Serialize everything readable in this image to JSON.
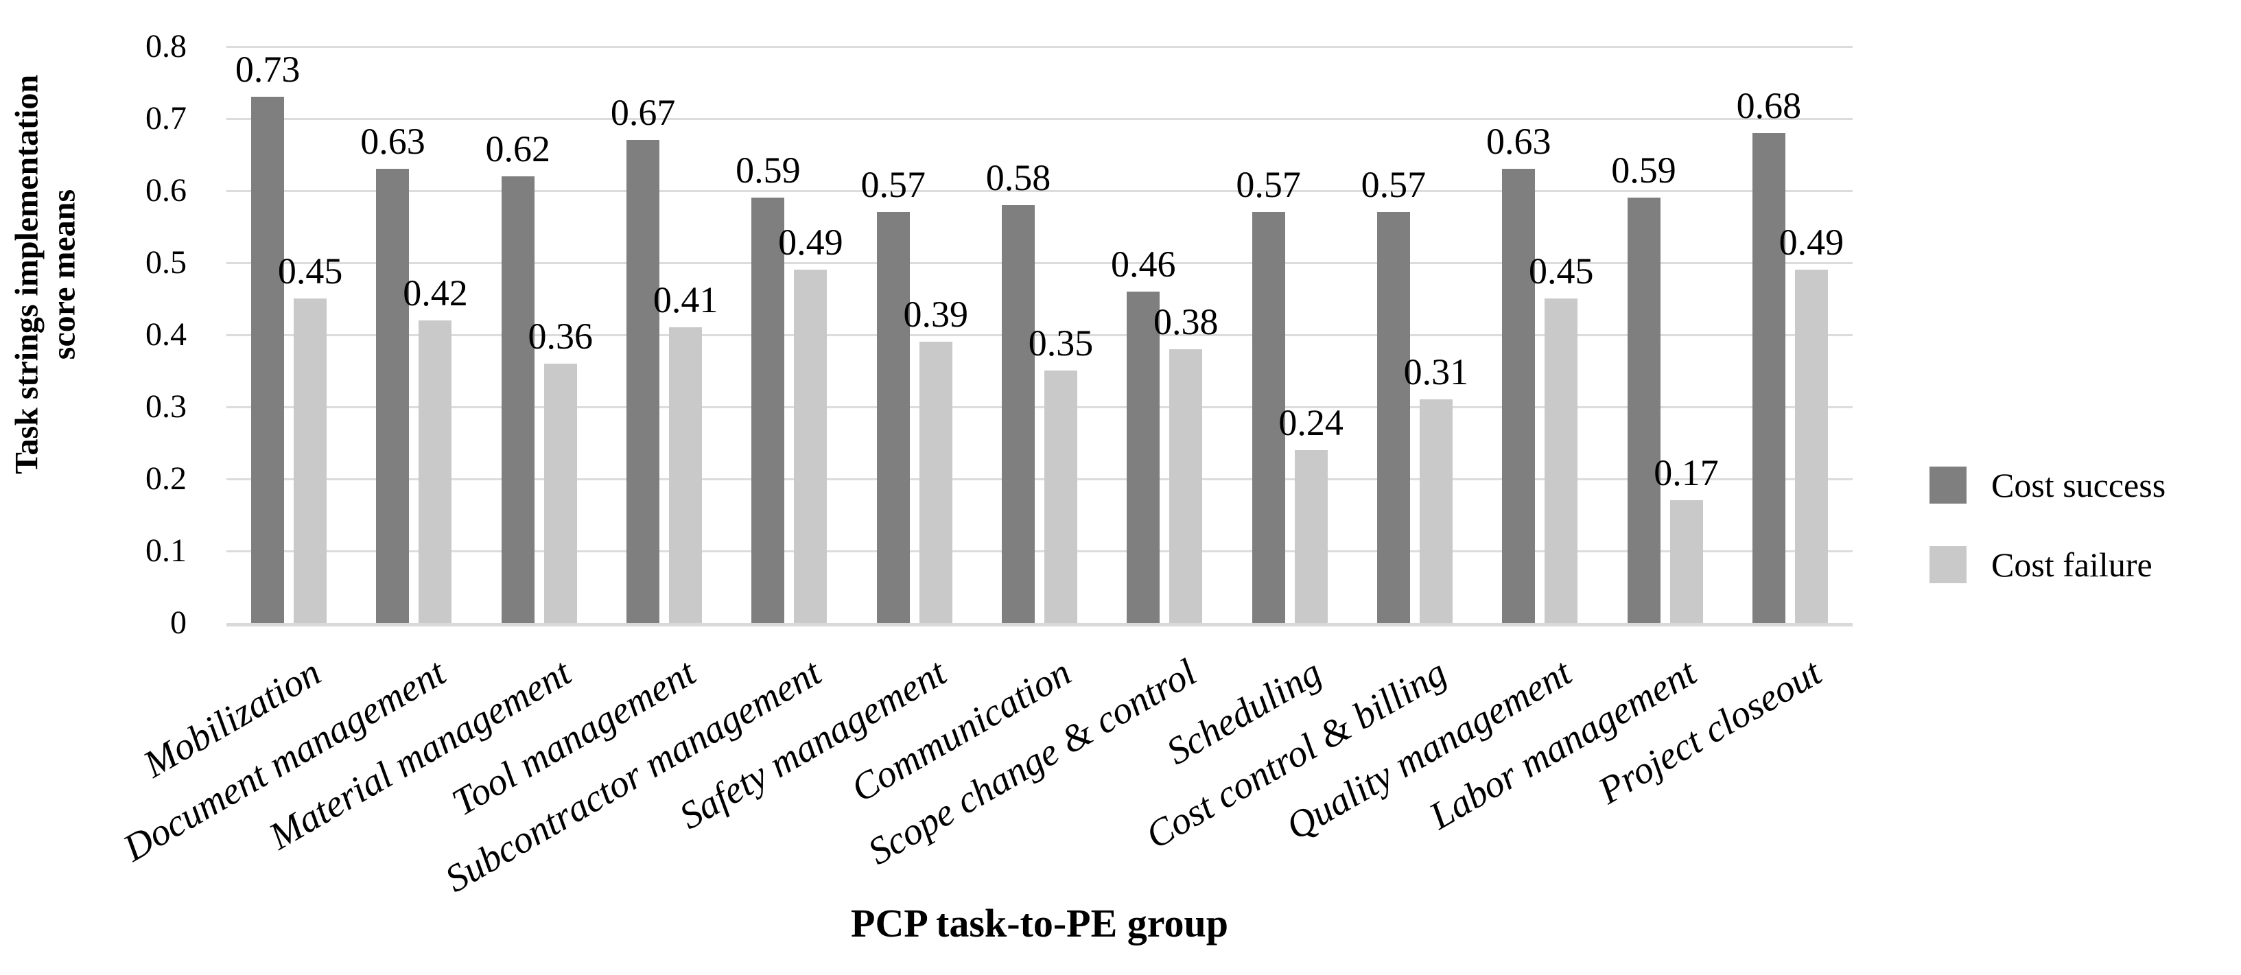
{
  "chart_data": {
    "type": "bar",
    "title": "",
    "categories": [
      "Mobilization",
      "Document management",
      "Material management",
      "Tool management",
      "Subcontractor management",
      "Safety management",
      "Communication",
      "Scope change & control",
      "Scheduling",
      "Cost control & billing",
      "Quality management",
      "Labor management",
      "Project closeout"
    ],
    "series": [
      {
        "name": "Cost success",
        "color": "#7f7f7f",
        "values": [
          0.73,
          0.63,
          0.62,
          0.67,
          0.59,
          0.57,
          0.58,
          0.46,
          0.57,
          0.57,
          0.63,
          0.59,
          0.68
        ]
      },
      {
        "name": "Cost failure",
        "color": "#c9c9c9",
        "values": [
          0.45,
          0.42,
          0.36,
          0.41,
          0.49,
          0.39,
          0.35,
          0.38,
          0.24,
          0.31,
          0.45,
          0.17,
          0.49
        ]
      }
    ],
    "xlabel": "PCP task-to-PE group",
    "ylabel": "Task strings implementation score means",
    "ylabel_lines": [
      "Task strings implementation",
      "score means"
    ],
    "ylim": [
      0,
      0.8
    ],
    "y_ticks": [
      "0",
      "0.1",
      "0.2",
      "0.3",
      "0.4",
      "0.5",
      "0.6",
      "0.7",
      "0.8"
    ],
    "grid": true,
    "legend_position": "right",
    "value_labels": true,
    "gridline_color": "#dcdcdc",
    "axis_line_color": "#d9d9d9"
  }
}
